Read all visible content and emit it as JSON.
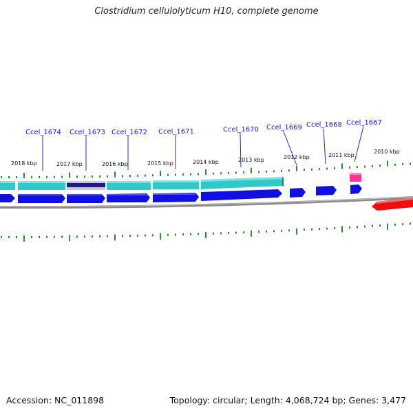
{
  "title": "Clostridium cellulolyticum H10, complete genome",
  "footer": {
    "accession": "Accession: NC_011898",
    "summary": "Topology: circular; Length: 4,068,724 bp; Genes: 3,477"
  },
  "colors": {
    "gene_label": "#1a14d6",
    "rna_cyan": "#33c8c8",
    "rna_selected": "#1a1a8a",
    "cds_forward": "#1010e0",
    "cds_reverse": "#ee1010",
    "pink_feature": "#ff3399",
    "tick": "#2a8a2a",
    "backbone": "#888888"
  },
  "kbp_labels": [
    "2018 kbp",
    "2017 kbp",
    "2016 kbp",
    "2015 kbp",
    "2014 kbp",
    "2013 kbp",
    "2012 kbp",
    "2011 kbp",
    "2010 kbp"
  ],
  "gene_labels": [
    "Ccel_1674",
    "Ccel_1673",
    "Ccel_1672",
    "Ccel_1671",
    "Ccel_1670",
    "Ccel_1669",
    "Ccel_1668",
    "Ccel_1667"
  ]
}
